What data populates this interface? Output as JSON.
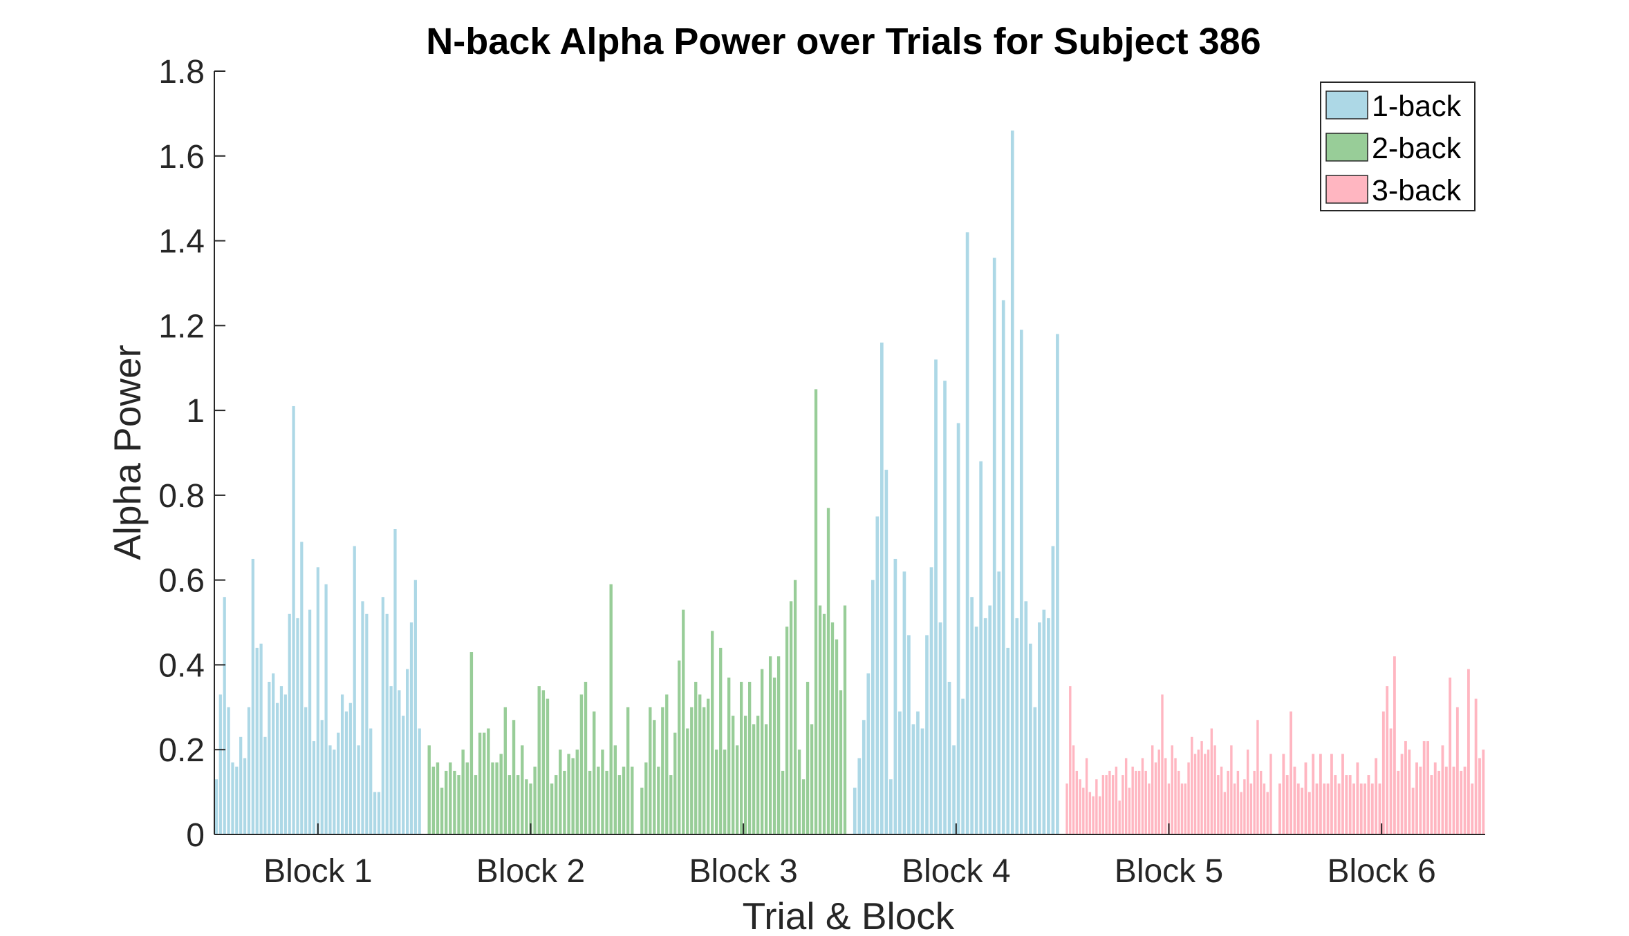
{
  "chart_data": {
    "type": "bar",
    "title": "N-back Alpha Power over Trials for Subject 386",
    "xlabel": "Trial & Block",
    "ylabel": "Alpha Power",
    "ylim": [
      0,
      1.8
    ],
    "yticks": [
      "0",
      "0.2",
      "0.4",
      "0.6",
      "0.8",
      "1",
      "1.2",
      "1.4",
      "1.6",
      "1.8"
    ],
    "grid": false,
    "legend_position": "top-right",
    "legend": [
      {
        "label": "1-back",
        "color": "#ADD8E6"
      },
      {
        "label": "2-back",
        "color": "#98CD98"
      },
      {
        "label": "3-back",
        "color": "#FFB6C1"
      }
    ],
    "blocks": [
      {
        "label": "Block 1",
        "condition": "1-back",
        "values": [
          0.13,
          0.33,
          0.56,
          0.3,
          0.17,
          0.16,
          0.23,
          0.18,
          0.3,
          0.65,
          0.44,
          0.45,
          0.23,
          0.36,
          0.38,
          0.31,
          0.35,
          0.33,
          0.52,
          1.01,
          0.51,
          0.69,
          0.3,
          0.53,
          0.22,
          0.63,
          0.27,
          0.59,
          0.21,
          0.2,
          0.24,
          0.33,
          0.29,
          0.31,
          0.68,
          0.21,
          0.55,
          0.52,
          0.25,
          0.1,
          0.1,
          0.56,
          0.52,
          0.35,
          0.72,
          0.34,
          0.28,
          0.39,
          0.5,
          0.6,
          0.25
        ]
      },
      {
        "label": "Block 2",
        "condition": "2-back",
        "values": [
          0.21,
          0.16,
          0.17,
          0.11,
          0.15,
          0.17,
          0.15,
          0.14,
          0.2,
          0.17,
          0.43,
          0.14,
          0.24,
          0.24,
          0.25,
          0.17,
          0.17,
          0.19,
          0.3,
          0.14,
          0.27,
          0.14,
          0.21,
          0.13,
          0.12,
          0.16,
          0.35,
          0.34,
          0.32,
          0.12,
          0.14,
          0.2,
          0.15,
          0.19,
          0.18,
          0.2,
          0.33,
          0.36,
          0.15,
          0.29,
          0.16,
          0.2,
          0.15,
          0.59,
          0.21,
          0.14,
          0.16,
          0.3,
          0.16
        ]
      },
      {
        "label": "Block 3",
        "condition": "2-back",
        "values": [
          0.11,
          0.17,
          0.3,
          0.27,
          0.16,
          0.3,
          0.33,
          0.14,
          0.24,
          0.41,
          0.53,
          0.25,
          0.3,
          0.36,
          0.33,
          0.3,
          0.32,
          0.48,
          0.2,
          0.44,
          0.2,
          0.37,
          0.28,
          0.21,
          0.36,
          0.28,
          0.36,
          0.26,
          0.28,
          0.39,
          0.26,
          0.42,
          0.37,
          0.42,
          0.15,
          0.49,
          0.55,
          0.6,
          0.2,
          0.13,
          0.36,
          0.26,
          1.05,
          0.54,
          0.52,
          0.77,
          0.5,
          0.46,
          0.34,
          0.54
        ]
      },
      {
        "label": "Block 4",
        "condition": "1-back",
        "values": [
          0.11,
          0.18,
          0.27,
          0.38,
          0.6,
          0.75,
          1.16,
          0.86,
          0.13,
          0.65,
          0.29,
          0.62,
          0.47,
          0.26,
          0.29,
          0.25,
          0.47,
          0.63,
          1.12,
          0.5,
          1.07,
          0.36,
          0.21,
          0.97,
          0.32,
          1.42,
          0.56,
          0.49,
          0.88,
          0.51,
          0.54,
          1.36,
          0.62,
          1.26,
          0.44,
          1.66,
          0.51,
          1.19,
          0.55,
          0.45,
          0.3,
          0.5,
          0.53,
          0.51,
          0.68,
          1.18
        ]
      },
      {
        "label": "Block 5",
        "condition": "3-back",
        "values": [
          0.12,
          0.35,
          0.21,
          0.15,
          0.13,
          0.11,
          0.18,
          0.1,
          0.09,
          0.13,
          0.09,
          0.14,
          0.14,
          0.15,
          0.14,
          0.16,
          0.08,
          0.14,
          0.18,
          0.11,
          0.16,
          0.15,
          0.15,
          0.18,
          0.15,
          0.12,
          0.21,
          0.17,
          0.2,
          0.33,
          0.18,
          0.12,
          0.21,
          0.18,
          0.15,
          0.12,
          0.12,
          0.17,
          0.23,
          0.19,
          0.2,
          0.22,
          0.19,
          0.2,
          0.25,
          0.21,
          0.14,
          0.16,
          0.1,
          0.15,
          0.21,
          0.12,
          0.15,
          0.1,
          0.13,
          0.2,
          0.12,
          0.15,
          0.27,
          0.15,
          0.12,
          0.1,
          0.19
        ]
      },
      {
        "label": "Block 6",
        "condition": "3-back",
        "values": [
          0.12,
          0.19,
          0.14,
          0.29,
          0.16,
          0.12,
          0.11,
          0.17,
          0.1,
          0.19,
          0.12,
          0.19,
          0.12,
          0.12,
          0.19,
          0.14,
          0.12,
          0.19,
          0.14,
          0.14,
          0.12,
          0.17,
          0.12,
          0.12,
          0.14,
          0.12,
          0.18,
          0.12,
          0.29,
          0.35,
          0.25,
          0.42,
          0.15,
          0.19,
          0.22,
          0.2,
          0.11,
          0.17,
          0.16,
          0.22,
          0.22,
          0.14,
          0.17,
          0.15,
          0.21,
          0.16,
          0.37,
          0.16,
          0.3,
          0.15,
          0.16,
          0.39,
          0.12,
          0.32,
          0.18,
          0.2
        ]
      }
    ]
  }
}
